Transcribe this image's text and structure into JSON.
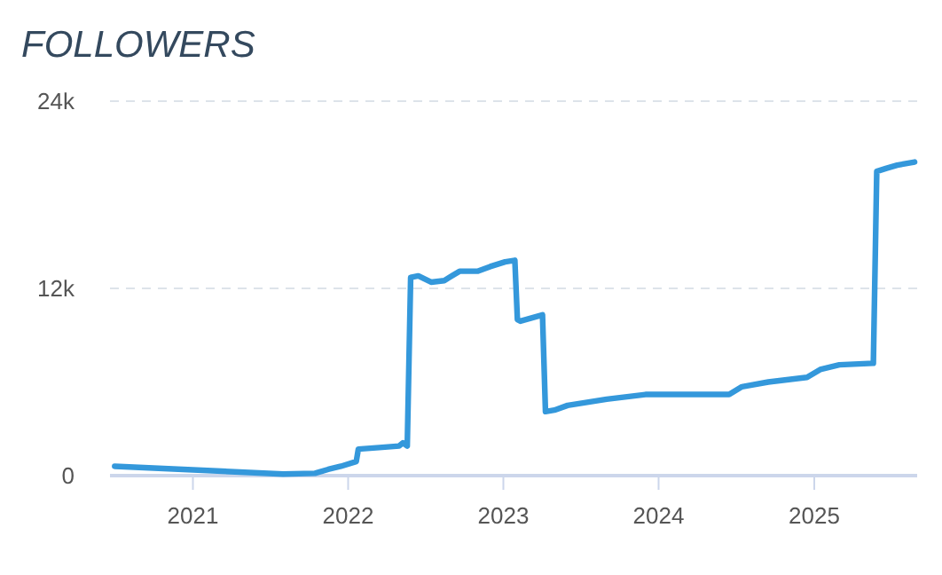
{
  "chart_data": {
    "type": "line",
    "title": "FOLLOWERS",
    "x": [
      "2020-07-01",
      "2021-08-01",
      "2021-10-15",
      "2021-11-15",
      "2021-12-15",
      "2022-01-20",
      "2022-01-25",
      "2022-03-15",
      "2022-05-01",
      "2022-05-10",
      "2022-05-20",
      "2022-05-28",
      "2022-06-15",
      "2022-07-15",
      "2022-08-15",
      "2022-09-20",
      "2022-11-01",
      "2022-12-01",
      "2023-01-05",
      "2023-01-28",
      "2023-02-03",
      "2023-02-10",
      "2023-04-03",
      "2023-04-10",
      "2023-05-01",
      "2023-06-01",
      "2023-09-01",
      "2023-12-01",
      "2024-06-15",
      "2024-07-15",
      "2024-09-15",
      "2024-12-15",
      "2025-01-15",
      "2025-03-01",
      "2025-05-20",
      "2025-05-28",
      "2025-06-20",
      "2025-07-15",
      "2025-08-25"
    ],
    "series": [
      {
        "color": "#3498db",
        "values": [
          600,
          100,
          150,
          400,
          600,
          900,
          1700,
          1800,
          1900,
          2100,
          1900,
          12700,
          12800,
          12400,
          12500,
          13100,
          13100,
          13400,
          13700,
          13800,
          10000,
          9900,
          10300,
          4100,
          4200,
          4500,
          4900,
          5200,
          5200,
          5700,
          6000,
          6300,
          6800,
          7100,
          7200,
          19500,
          19700,
          19900,
          20100
        ]
      }
    ],
    "xlim": [
      "2020-06-20",
      "2025-08-31"
    ],
    "xticks": [
      "2021",
      "2022",
      "2023",
      "2024",
      "2025"
    ],
    "ylim": [
      0,
      24000
    ],
    "yticks": [
      0,
      {
        "value": 12000,
        "label": "12k"
      },
      {
        "value": 24000,
        "label": "24k"
      }
    ],
    "grid": "y",
    "line_style": "solid",
    "marker": "none"
  }
}
